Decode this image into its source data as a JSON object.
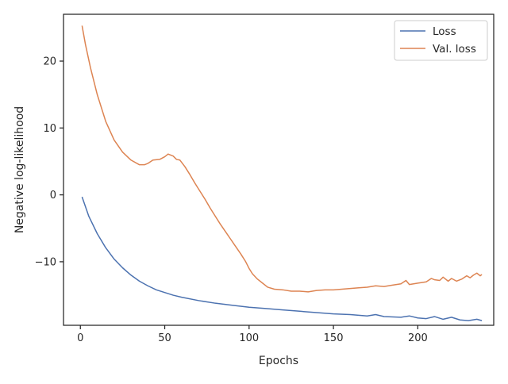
{
  "chart_data": {
    "type": "line",
    "xlabel": "Epochs",
    "ylabel": "Negative log-likelihood",
    "xlim": [
      -10,
      245
    ],
    "ylim": [
      -19.5,
      27
    ],
    "xticks": [
      0,
      50,
      100,
      150,
      200
    ],
    "xtick_labels": [
      "0",
      "50",
      "100",
      "150",
      "200"
    ],
    "yticks": [
      -10,
      0,
      10,
      20
    ],
    "ytick_labels": [
      "−10",
      "0",
      "10",
      "20"
    ],
    "grid": false,
    "legend_position": "top-right",
    "series": [
      {
        "name": "Loss",
        "color": "#4c72b0",
        "points": [
          [
            1,
            -0.3
          ],
          [
            5,
            -3.2
          ],
          [
            10,
            -5.8
          ],
          [
            15,
            -7.9
          ],
          [
            20,
            -9.6
          ],
          [
            25,
            -10.9
          ],
          [
            30,
            -12.0
          ],
          [
            35,
            -12.9
          ],
          [
            40,
            -13.6
          ],
          [
            45,
            -14.2
          ],
          [
            50,
            -14.6
          ],
          [
            55,
            -15.0
          ],
          [
            60,
            -15.3
          ],
          [
            70,
            -15.8
          ],
          [
            80,
            -16.2
          ],
          [
            90,
            -16.5
          ],
          [
            100,
            -16.8
          ],
          [
            110,
            -17.0
          ],
          [
            120,
            -17.2
          ],
          [
            130,
            -17.4
          ],
          [
            140,
            -17.6
          ],
          [
            150,
            -17.8
          ],
          [
            160,
            -17.9
          ],
          [
            170,
            -18.1
          ],
          [
            175,
            -17.9
          ],
          [
            180,
            -18.2
          ],
          [
            190,
            -18.3
          ],
          [
            195,
            -18.1
          ],
          [
            200,
            -18.4
          ],
          [
            205,
            -18.5
          ],
          [
            210,
            -18.2
          ],
          [
            215,
            -18.6
          ],
          [
            220,
            -18.3
          ],
          [
            225,
            -18.7
          ],
          [
            230,
            -18.8
          ],
          [
            235,
            -18.6
          ],
          [
            238,
            -18.8
          ]
        ]
      },
      {
        "name": "Val. loss",
        "color": "#dd8452",
        "points": [
          [
            1,
            25.3
          ],
          [
            3,
            22.5
          ],
          [
            6,
            19.0
          ],
          [
            10,
            15.0
          ],
          [
            15,
            11.0
          ],
          [
            20,
            8.2
          ],
          [
            25,
            6.4
          ],
          [
            30,
            5.2
          ],
          [
            35,
            4.5
          ],
          [
            38,
            4.5
          ],
          [
            40,
            4.7
          ],
          [
            43,
            5.2
          ],
          [
            47,
            5.3
          ],
          [
            50,
            5.7
          ],
          [
            52,
            6.1
          ],
          [
            55,
            5.8
          ],
          [
            57,
            5.3
          ],
          [
            59,
            5.2
          ],
          [
            62,
            4.2
          ],
          [
            65,
            3.0
          ],
          [
            68,
            1.7
          ],
          [
            71,
            0.5
          ],
          [
            74,
            -0.7
          ],
          [
            77,
            -2.0
          ],
          [
            80,
            -3.2
          ],
          [
            83,
            -4.4
          ],
          [
            86,
            -5.5
          ],
          [
            89,
            -6.6
          ],
          [
            92,
            -7.7
          ],
          [
            95,
            -8.8
          ],
          [
            98,
            -10.0
          ],
          [
            100,
            -11.0
          ],
          [
            102,
            -11.8
          ],
          [
            105,
            -12.6
          ],
          [
            108,
            -13.2
          ],
          [
            111,
            -13.8
          ],
          [
            115,
            -14.1
          ],
          [
            120,
            -14.2
          ],
          [
            125,
            -14.4
          ],
          [
            130,
            -14.4
          ],
          [
            135,
            -14.5
          ],
          [
            140,
            -14.3
          ],
          [
            145,
            -14.2
          ],
          [
            150,
            -14.2
          ],
          [
            155,
            -14.1
          ],
          [
            160,
            -14.0
          ],
          [
            165,
            -13.9
          ],
          [
            170,
            -13.8
          ],
          [
            175,
            -13.6
          ],
          [
            180,
            -13.7
          ],
          [
            185,
            -13.5
          ],
          [
            190,
            -13.3
          ],
          [
            193,
            -12.8
          ],
          [
            195,
            -13.4
          ],
          [
            200,
            -13.2
          ],
          [
            205,
            -13.0
          ],
          [
            208,
            -12.5
          ],
          [
            210,
            -12.7
          ],
          [
            213,
            -12.8
          ],
          [
            215,
            -12.3
          ],
          [
            218,
            -12.9
          ],
          [
            220,
            -12.5
          ],
          [
            223,
            -12.9
          ],
          [
            226,
            -12.6
          ],
          [
            229,
            -12.1
          ],
          [
            231,
            -12.4
          ],
          [
            233,
            -12.0
          ],
          [
            235,
            -11.7
          ],
          [
            237,
            -12.1
          ],
          [
            238,
            -11.9
          ]
        ]
      }
    ]
  }
}
